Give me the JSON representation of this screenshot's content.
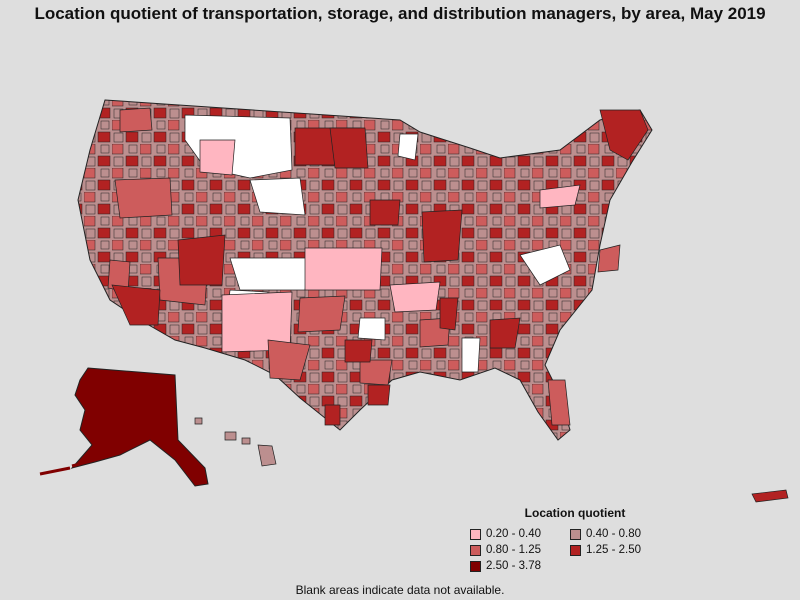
{
  "title": "Location quotient of transportation, storage, and distribution managers, by area, May 2019",
  "legend": {
    "title": "Location quotient",
    "items": [
      {
        "label": "0.20 - 0.40",
        "color": "#ffb6c1"
      },
      {
        "label": "0.40 - 0.80",
        "color": "#bc8f8f"
      },
      {
        "label": "0.80 - 1.25",
        "color": "#cd5c5c"
      },
      {
        "label": "1.25 - 2.50",
        "color": "#b22222"
      },
      {
        "label": "2.50 - 3.78",
        "color": "#800000"
      }
    ]
  },
  "note": "Blank areas indicate data not available.",
  "colors": {
    "background": "#dedede",
    "no_data": "#ffffff",
    "border": "#222222"
  }
}
